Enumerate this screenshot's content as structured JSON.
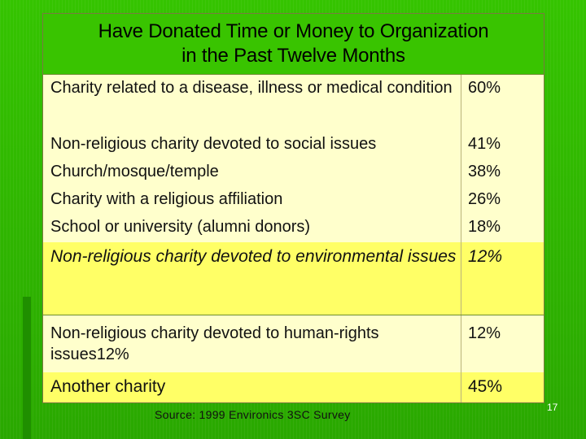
{
  "title": {
    "line1": "Have Donated Time or Money to Organization",
    "line2": "in the Past Twelve Months"
  },
  "rows": [
    {
      "label": "Charity related to a disease, illness or medical condition",
      "pct": "60%"
    },
    {
      "label": "Non-religious charity devoted to social issues",
      "pct": "41%"
    },
    {
      "label": "Church/mosque/temple",
      "pct": "38%"
    },
    {
      "label": "Charity with a religious affiliation",
      "pct": "26%"
    },
    {
      "label": "School or university (alumni donors)",
      "pct": "18%"
    },
    {
      "label": "Non-religious charity devoted to environmental issues",
      "pct": "12%"
    },
    {
      "label": "Non-religious charity devoted to human-rights issues12%",
      "pct": "12%"
    },
    {
      "label": "Another  charity",
      "pct": "45%"
    }
  ],
  "source": "Source:  1999 Environics 3SC Survey",
  "page_number": "17",
  "colors": {
    "background": "#2fb800",
    "title_cell": "#39c400",
    "row_plain": "#ffffcc",
    "row_highlight": "#ffff66"
  }
}
